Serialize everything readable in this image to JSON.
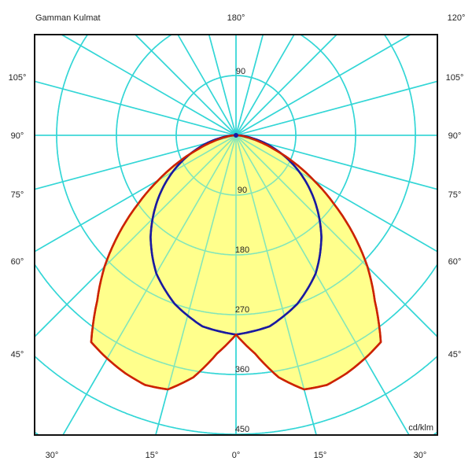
{
  "chart_data": {
    "type": "polar",
    "title": "Gamman Kulmat",
    "unit_label": "cd/klm",
    "radial_ticks": [
      90,
      180,
      270,
      360,
      450
    ],
    "radial_tick_top": "90",
    "angle_labels": {
      "top_center": "180°",
      "top_right": "120°",
      "left": [
        "105°",
        "90°",
        "75°",
        "60°",
        "45°"
      ],
      "right": [
        "105°",
        "90°",
        "75°",
        "60°",
        "45°"
      ],
      "bottom": [
        "30°",
        "15°",
        "0°",
        "15°",
        "30°"
      ]
    },
    "angle_step_deg": 15,
    "series": [
      {
        "color": "#cc2200",
        "fill": "#ffff8c",
        "angles": [
          0,
          5,
          10,
          15,
          20,
          25,
          30,
          35,
          40,
          45,
          50,
          55,
          60,
          65,
          70,
          75,
          80,
          85,
          90
        ],
        "values": [
          300,
          330,
          370,
          396,
          400,
          395,
          388,
          380,
          325,
          280,
          230,
          180,
          135,
          95,
          60,
          35,
          18,
          6,
          0
        ]
      },
      {
        "color": "#1a1aa0",
        "angles": [
          0,
          10,
          20,
          30,
          40,
          50,
          60,
          70,
          80,
          90
        ],
        "values": [
          300,
          292,
          270,
          240,
          200,
          155,
          110,
          65,
          25,
          0
        ]
      }
    ],
    "grid_color": "#33d6d6"
  }
}
